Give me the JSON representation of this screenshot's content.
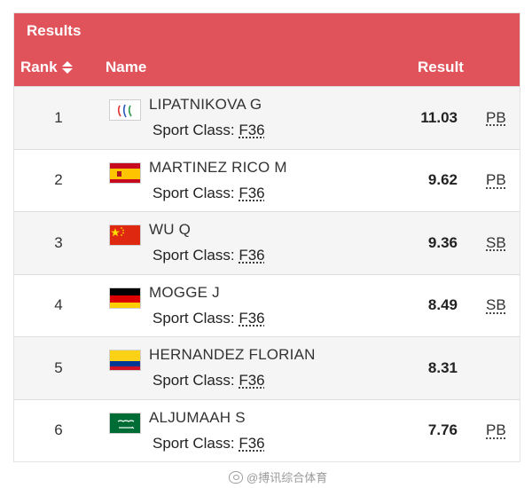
{
  "header": {
    "title": "Results",
    "col_rank": "Rank",
    "col_name": "Name",
    "col_result": "Result"
  },
  "sport_class_label": "Sport Class:",
  "rows": [
    {
      "rank": "1",
      "name": "LIPATNIKOVA G",
      "flag": "paralympic-neutral",
      "sport_class": "F36",
      "result": "11.03",
      "record": "PB"
    },
    {
      "rank": "2",
      "name": "MARTINEZ RICO M",
      "flag": "spain",
      "sport_class": "F36",
      "result": "9.62",
      "record": "PB"
    },
    {
      "rank": "3",
      "name": "WU Q",
      "flag": "china",
      "sport_class": "F36",
      "result": "9.36",
      "record": "SB"
    },
    {
      "rank": "4",
      "name": "MOGGE J",
      "flag": "germany",
      "sport_class": "F36",
      "result": "8.49",
      "record": "SB"
    },
    {
      "rank": "5",
      "name": "HERNANDEZ FLORIAN",
      "flag": "colombia",
      "sport_class": "F36",
      "result": "8.31",
      "record": ""
    },
    {
      "rank": "6",
      "name": "ALJUMAAH S",
      "flag": "saudi-arabia",
      "sport_class": "F36",
      "result": "7.76",
      "record": "PB"
    }
  ],
  "watermark": "@搏讯综合体育",
  "colors": {
    "header_bg": "#e0535b",
    "row_alt": "#f5f5f5"
  }
}
